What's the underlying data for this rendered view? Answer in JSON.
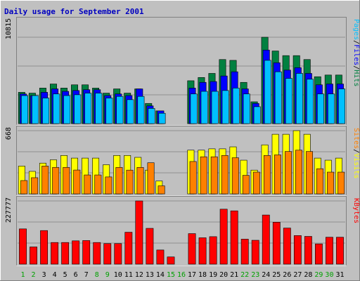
{
  "chart_data": {
    "type": "bar",
    "title": "Daily usage for September 2001",
    "days": [
      "1",
      "2",
      "3",
      "4",
      "5",
      "6",
      "7",
      "8",
      "9",
      "10",
      "11",
      "12",
      "13",
      "14",
      "15",
      "16",
      "17",
      "18",
      "19",
      "20",
      "21",
      "22",
      "23",
      "24",
      "25",
      "26",
      "27",
      "28",
      "29",
      "30",
      "31"
    ],
    "weekend_days": [
      "1",
      "2",
      "8",
      "9",
      "15",
      "16",
      "22",
      "23",
      "29",
      "30"
    ],
    "colors": {
      "background": "#c0c0c0",
      "frame": "#808080",
      "title": "#0000c0",
      "hits": "#008040",
      "files": "#0000ff",
      "pages": "#00c0ff",
      "visits": "#ffff00",
      "sites": "#ff8000",
      "kbytes": "#ff0000",
      "weekday_label": "#000000",
      "weekend_label": "#00a000"
    },
    "panels": [
      {
        "max_label": "10815",
        "max": 10815,
        "legend": [
          {
            "text": "Pages",
            "color": "#00c0ff"
          },
          {
            "text": "/",
            "color": "#000000"
          },
          {
            "text": "Files",
            "color": "#0000ff"
          },
          {
            "text": "/",
            "color": "#000000"
          },
          {
            "text": "Hits",
            "color": "#008040"
          }
        ],
        "series": [
          {
            "name": "Hits",
            "color": "#008040",
            "values": [
              3921,
              3819,
              4451,
              4961,
              4451,
              4859,
              4859,
              4451,
              3819,
              4349,
              3819,
              4349,
              2528,
              1600,
              0,
              0,
              5370,
              5778,
              6288,
              8024,
              7922,
              5166,
              2732,
              10815,
              9094,
              8514,
              8514,
              8024,
              5872,
              6084,
              6084
            ]
          },
          {
            "name": "Files",
            "color": "#0000ff",
            "values": [
              3717,
              3513,
              3921,
              4349,
              4043,
              4145,
              4247,
              4247,
              3513,
              3717,
              3513,
              4349,
              2222,
              1600,
              0,
              0,
              4451,
              5166,
              5268,
              5968,
              6492,
              4349,
              2528,
              9212,
              7616,
              6698,
              7004,
              6288,
              4859,
              4961,
              4961
            ]
          },
          {
            "name": "Pages",
            "color": "#00c0ff",
            "values": [
              3513,
              3513,
              3207,
              3717,
              3513,
              3615,
              3819,
              3819,
              3207,
              3411,
              3003,
              3411,
              1905,
              1300,
              0,
              0,
              3717,
              4043,
              4043,
              4145,
              4451,
              3717,
              2119,
              7922,
              6492,
              5664,
              6288,
              5562,
              3717,
              3717,
              4349
            ]
          }
        ]
      },
      {
        "max_label": "668",
        "max": 668,
        "legend": [
          {
            "text": "Sites",
            "color": "#ff8000"
          },
          {
            "text": "/",
            "color": "#000000"
          },
          {
            "text": "Visits",
            "color": "#ffff00"
          }
        ],
        "series": [
          {
            "name": "Visits",
            "color": "#ffff00",
            "values": [
              294,
              238,
              325,
              360,
              406,
              378,
              378,
              378,
              308,
              406,
              406,
              386,
              251,
              136,
              0,
              0,
              462,
              462,
              476,
              476,
              497,
              356,
              251,
              518,
              630,
              630,
              668,
              630,
              378,
              356,
              378
            ]
          },
          {
            "name": "Sites",
            "color": "#ff8000",
            "values": [
              141,
              171,
              294,
              280,
              280,
              252,
              200,
              200,
              179,
              280,
              251,
              280,
              329,
              85,
              0,
              0,
              342,
              392,
              392,
              406,
              382,
              196,
              230,
              406,
              412,
              448,
              462,
              448,
              266,
              230,
              230
            ]
          }
        ]
      },
      {
        "max_label": "227777",
        "max": 227777,
        "legend": [
          {
            "text": "KBytes",
            "color": "#ff0000"
          }
        ],
        "series": [
          {
            "name": "KBytes",
            "color": "#ff0000",
            "values": [
              127000,
              62000,
              121000,
              78000,
              78000,
              84000,
              85000,
              78000,
              74000,
              74000,
              115000,
              227777,
              129000,
              51000,
              26000,
              0,
              110000,
              95000,
              99000,
              198000,
              192000,
              90000,
              86000,
              177000,
              151000,
              130000,
              103000,
              100000,
              73000,
              97000,
              97000
            ]
          }
        ]
      }
    ]
  }
}
